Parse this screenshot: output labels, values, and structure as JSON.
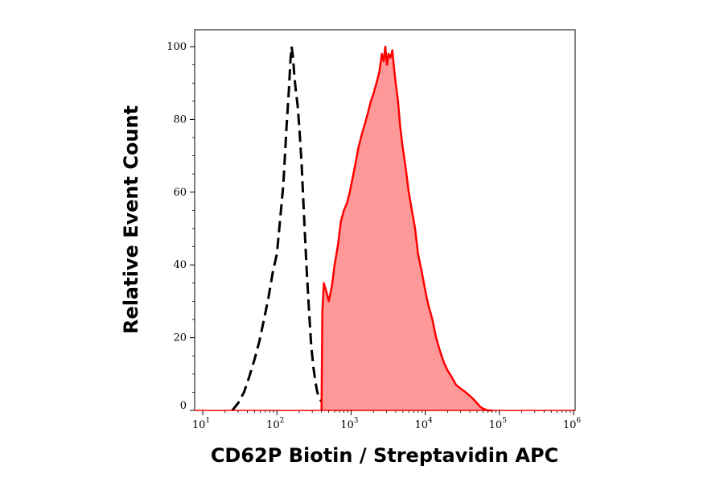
{
  "chart_data": {
    "type": "area",
    "xlabel": "CD62P Biotin / Streptavidin APC",
    "ylabel": "Relative Event Count",
    "x_scale": "log",
    "xlim": [
      10,
      1000000
    ],
    "ylim": [
      0,
      100
    ],
    "grid": false,
    "legend": "none",
    "x_ticks": [
      {
        "base": "10",
        "exp": "1",
        "value": 10
      },
      {
        "base": "10",
        "exp": "2",
        "value": 100
      },
      {
        "base": "10",
        "exp": "3",
        "value": 1000
      },
      {
        "base": "10",
        "exp": "4",
        "value": 10000
      },
      {
        "base": "10",
        "exp": "5",
        "value": 100000
      },
      {
        "base": "10",
        "exp": "6",
        "value": 1000000
      }
    ],
    "y_ticks": [
      {
        "label": "0",
        "value": 0
      },
      {
        "label": "20",
        "value": 20
      },
      {
        "label": "40",
        "value": 40
      },
      {
        "label": "60",
        "value": 60
      },
      {
        "label": "80",
        "value": 80
      },
      {
        "label": "100",
        "value": 100
      }
    ],
    "series": [
      {
        "style": "dashed-line",
        "color": "#000000",
        "x": [
          25,
          30,
          36,
          42,
          50,
          58,
          67,
          77,
          88,
          100,
          110,
          122,
          135,
          145,
          152,
          158,
          165,
          172,
          180,
          190,
          200,
          215,
          230,
          250,
          270,
          290,
          310,
          330,
          350,
          380,
          420,
          480,
          550,
          650
        ],
        "y": [
          0,
          2,
          5,
          9,
          14,
          19,
          25,
          31,
          38,
          43,
          52,
          62,
          78,
          88,
          96,
          100,
          97,
          92,
          88,
          84,
          78,
          68,
          55,
          40,
          28,
          18,
          12,
          8,
          5,
          3,
          2,
          1,
          0.5,
          0
        ]
      },
      {
        "style": "filled",
        "color": "#ff0000",
        "fill": "#ff9999",
        "x": [
          400,
          410,
          430,
          460,
          500,
          550,
          600,
          660,
          730,
          800,
          880,
          960,
          1050,
          1150,
          1250,
          1400,
          1550,
          1700,
          1850,
          2000,
          2200,
          2400,
          2600,
          2750,
          2900,
          3050,
          3200,
          3400,
          3600,
          3800,
          4000,
          4300,
          4600,
          5000,
          5500,
          6000,
          6600,
          7300,
          8000,
          9000,
          10000,
          11000,
          12500,
          14000,
          16000,
          18000,
          20000,
          23000,
          26000,
          30000,
          35000,
          40000,
          45000,
          50000,
          55000,
          60000,
          70000,
          80000
        ],
        "y": [
          0,
          27,
          35,
          33,
          30,
          34,
          40,
          45,
          52,
          55,
          57,
          60,
          64,
          68,
          72,
          76,
          79,
          82,
          85,
          87,
          90,
          93,
          98,
          96,
          100,
          95,
          98,
          97,
          99,
          94,
          90,
          85,
          78,
          72,
          66,
          60,
          55,
          50,
          43,
          38,
          33,
          29,
          25,
          20,
          16,
          13,
          11,
          9,
          7,
          6,
          5,
          4,
          3,
          2,
          1,
          0.5,
          0,
          0
        ]
      }
    ]
  }
}
